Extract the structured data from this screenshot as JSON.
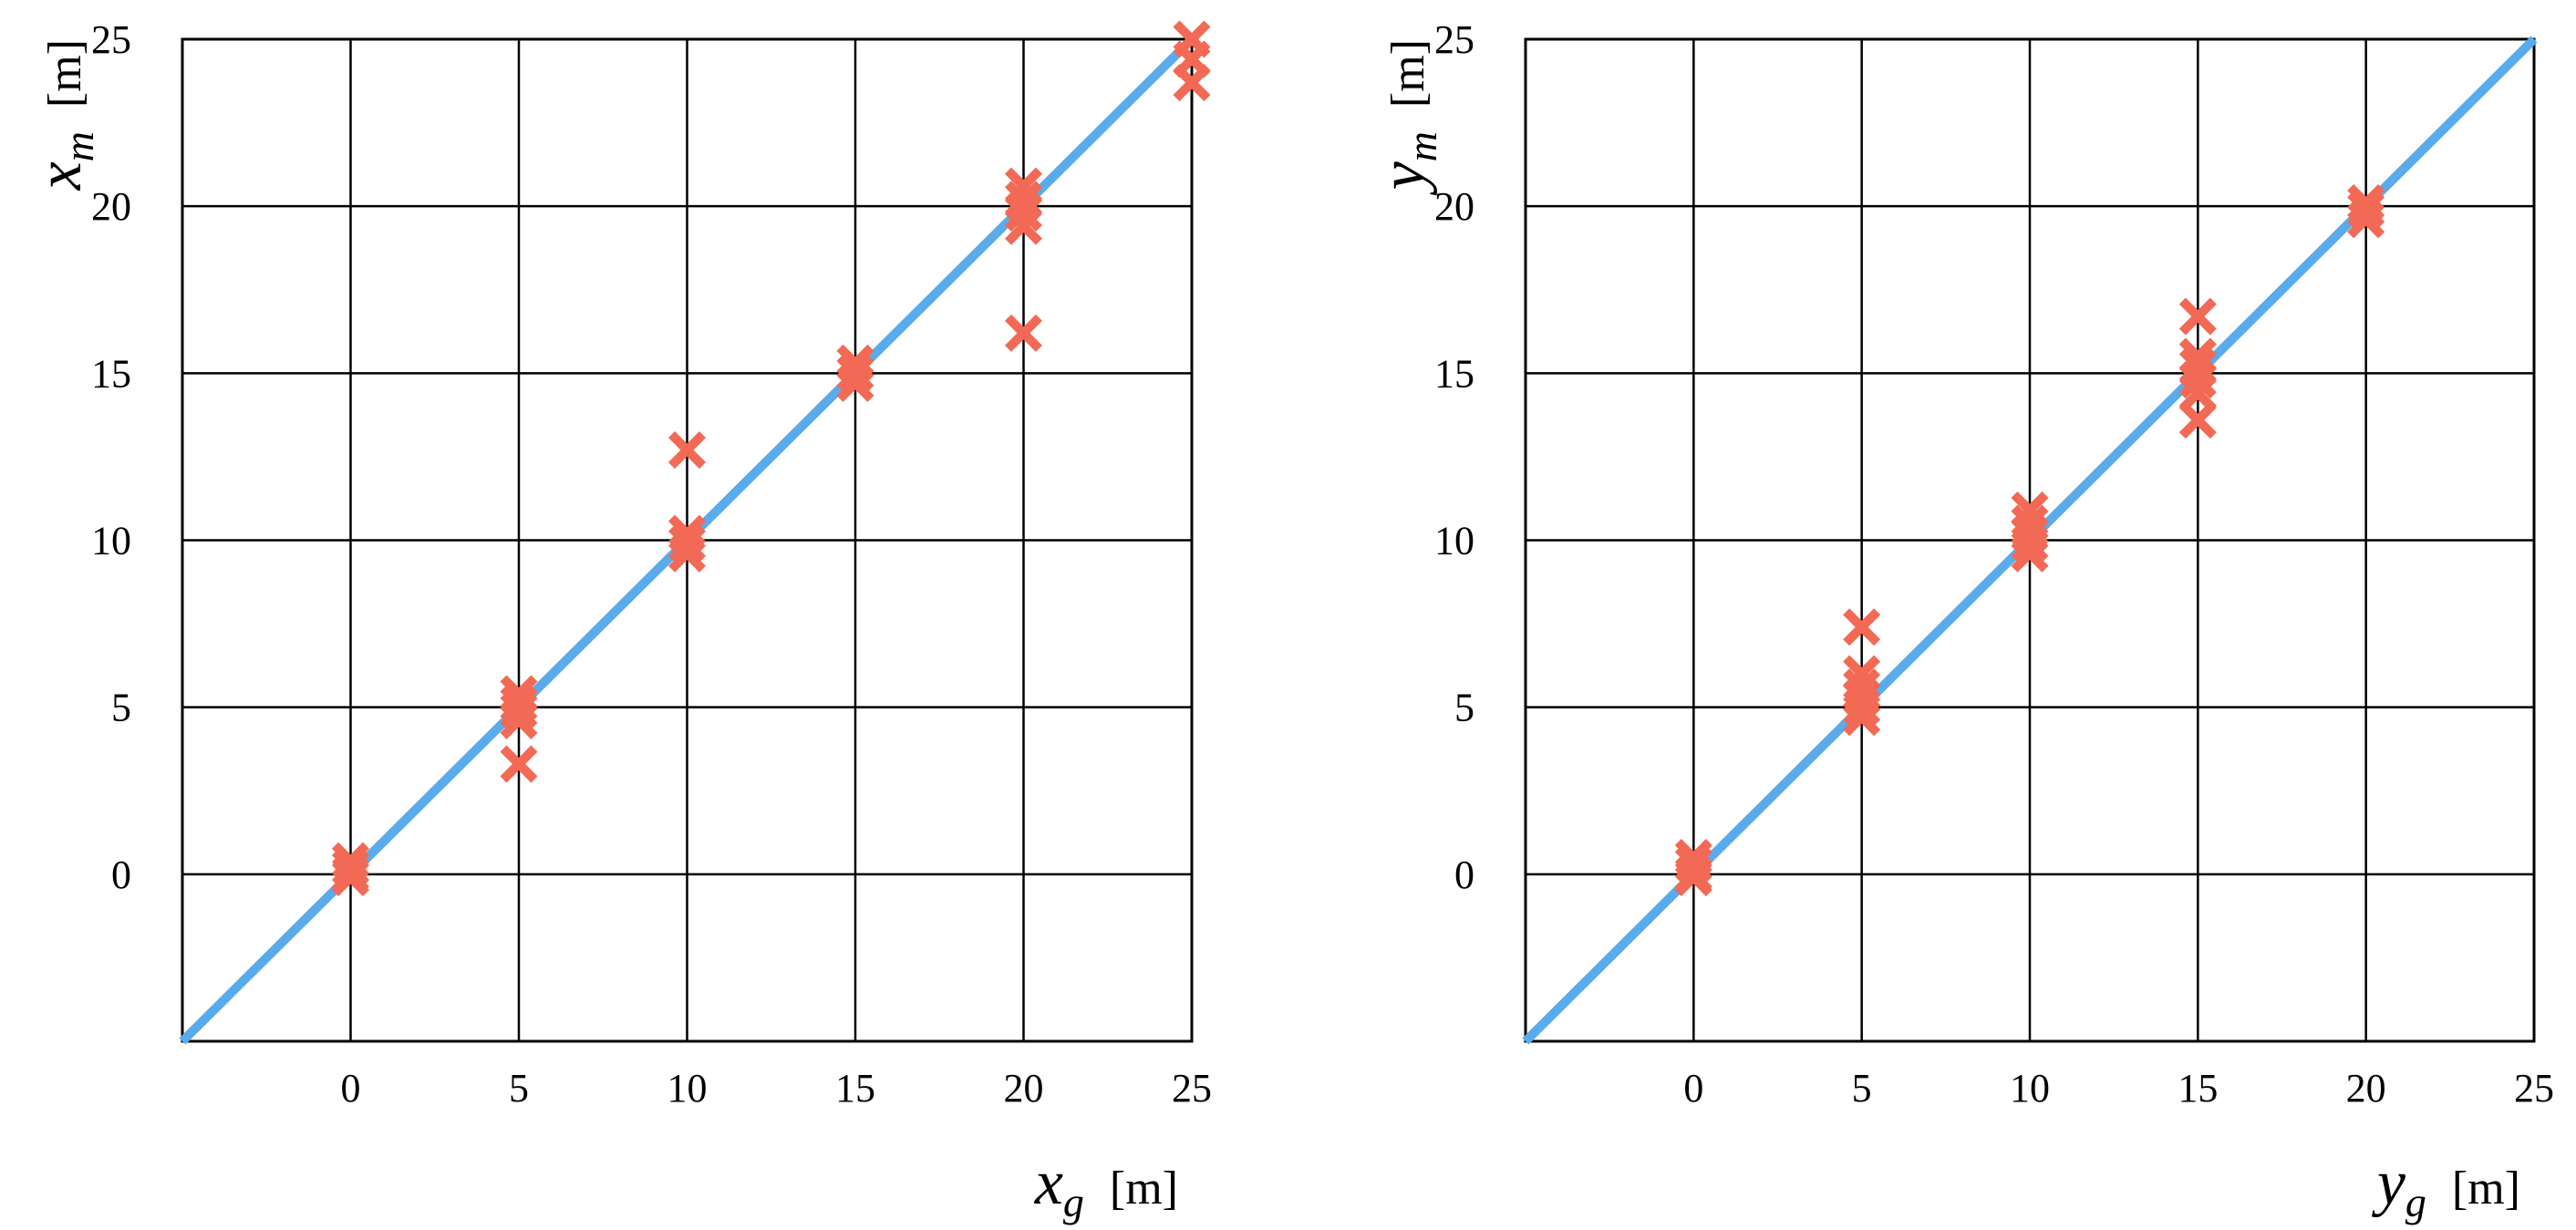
{
  "colors": {
    "grid": "#000000",
    "reference_line": "#5aabeb",
    "marker": "#f26a55"
  },
  "chart_data": [
    {
      "type": "scatter",
      "title": "",
      "xlabel": {
        "var": "x",
        "sub": "g",
        "unit": "[m]"
      },
      "ylabel": {
        "var": "x",
        "sub": "m",
        "unit": "[m]"
      },
      "xlim": [
        -5,
        25
      ],
      "ylim": [
        -5,
        25
      ],
      "xticks": [
        0,
        5,
        10,
        15,
        20,
        25
      ],
      "yticks": [
        0,
        5,
        10,
        15,
        20,
        25
      ],
      "grid": true,
      "marker": "x",
      "reference_line": [
        [
          -5,
          -5
        ],
        [
          25,
          25
        ]
      ],
      "points": [
        [
          0,
          0.0
        ],
        [
          0,
          0.4
        ],
        [
          0,
          0.2
        ],
        [
          0,
          -0.1
        ],
        [
          5,
          3.3
        ],
        [
          5,
          4.6
        ],
        [
          5,
          4.9
        ],
        [
          5,
          5.1
        ],
        [
          5,
          5.4
        ],
        [
          10,
          9.6
        ],
        [
          10,
          9.9
        ],
        [
          10,
          10.2
        ],
        [
          10,
          12.7
        ],
        [
          15,
          14.7
        ],
        [
          15,
          15.0
        ],
        [
          15,
          15.3
        ],
        [
          20,
          16.2
        ],
        [
          20,
          19.4
        ],
        [
          20,
          19.8
        ],
        [
          20,
          20.2
        ],
        [
          20,
          20.6
        ],
        [
          25,
          23.7
        ],
        [
          25,
          24.4
        ],
        [
          25,
          25.0
        ]
      ]
    },
    {
      "type": "scatter",
      "title": "",
      "xlabel": {
        "var": "y",
        "sub": "g",
        "unit": "[m]"
      },
      "ylabel": {
        "var": "y",
        "sub": "m",
        "unit": "[m]"
      },
      "xlim": [
        -5,
        25
      ],
      "ylim": [
        -5,
        25
      ],
      "xticks": [
        0,
        5,
        10,
        15,
        20,
        25
      ],
      "yticks": [
        0,
        5,
        10,
        15,
        20,
        25
      ],
      "grid": true,
      "marker": "x",
      "reference_line": [
        [
          -5,
          -5
        ],
        [
          25,
          25
        ]
      ],
      "points": [
        [
          0,
          0.0
        ],
        [
          0,
          0.3
        ],
        [
          0,
          0.5
        ],
        [
          0,
          -0.1
        ],
        [
          5,
          4.7
        ],
        [
          5,
          5.0
        ],
        [
          5,
          5.3
        ],
        [
          5,
          5.6
        ],
        [
          5,
          6.0
        ],
        [
          5,
          7.4
        ],
        [
          10,
          9.6
        ],
        [
          10,
          9.9
        ],
        [
          10,
          10.2
        ],
        [
          10,
          10.5
        ],
        [
          10,
          10.9
        ],
        [
          15,
          13.6
        ],
        [
          15,
          14.4
        ],
        [
          15,
          14.8
        ],
        [
          15,
          15.2
        ],
        [
          15,
          15.5
        ],
        [
          15,
          16.7
        ],
        [
          20,
          19.6
        ],
        [
          20,
          19.9
        ],
        [
          20,
          20.1
        ]
      ]
    }
  ]
}
